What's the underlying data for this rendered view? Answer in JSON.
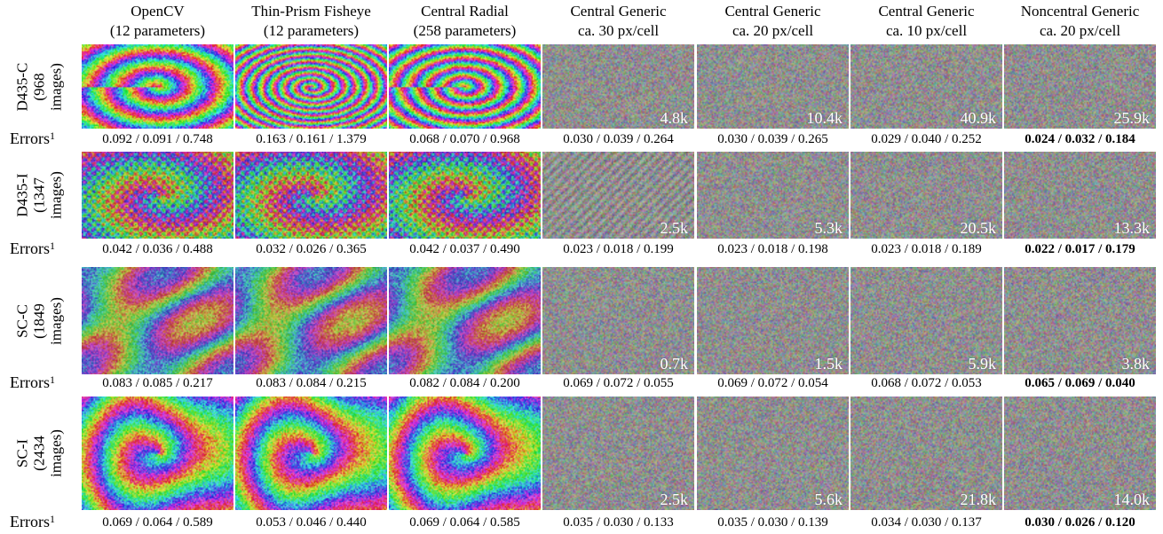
{
  "columns": [
    {
      "title": "OpenCV",
      "subtitle": "(12 parameters)"
    },
    {
      "title": "Thin-Prism Fisheye",
      "subtitle": "(12 parameters)"
    },
    {
      "title": "Central Radial",
      "subtitle": "(258 parameters)"
    },
    {
      "title": "Central Generic",
      "subtitle": "ca. 30 px/cell"
    },
    {
      "title": "Central Generic",
      "subtitle": "ca. 20 px/cell"
    },
    {
      "title": "Central Generic",
      "subtitle": "ca. 10 px/cell"
    },
    {
      "title": "Noncentral Generic",
      "subtitle": "ca. 20 px/cell"
    }
  ],
  "error_label": "Errors",
  "error_label_sup": "1",
  "rows": [
    {
      "name": "D435-C",
      "images": "(968",
      "images_word": "images)",
      "counts": [
        "",
        "",
        "",
        "4.8k",
        "10.4k",
        "40.9k",
        "25.9k"
      ],
      "errors": [
        "0.092 / 0.091 / 0.748",
        "0.163 / 0.161 / 1.379",
        "0.068 / 0.070 / 0.968",
        "0.030 / 0.039 / 0.264",
        "0.030 / 0.039 / 0.265",
        "0.029 / 0.040 / 0.252",
        "0.024 / 0.032 / 0.184"
      ]
    },
    {
      "name": "D435-I",
      "images": "(1347",
      "images_word": "images)",
      "counts": [
        "",
        "",
        "",
        "2.5k",
        "5.3k",
        "20.5k",
        "13.3k"
      ],
      "errors": [
        "0.042 / 0.036 / 0.488",
        "0.032 / 0.026 / 0.365",
        "0.042 / 0.037 / 0.490",
        "0.023 / 0.018 / 0.199",
        "0.023 / 0.018 / 0.198",
        "0.023 / 0.018 / 0.189",
        "0.022 / 0.017 / 0.179"
      ]
    },
    {
      "name": "SC-C",
      "images": "(1849",
      "images_word": "images)",
      "counts": [
        "",
        "",
        "",
        "0.7k",
        "1.5k",
        "5.9k",
        "3.8k"
      ],
      "errors": [
        "0.083 / 0.085 / 0.217",
        "0.083 / 0.084 / 0.215",
        "0.082 / 0.084 / 0.200",
        "0.069 / 0.072 / 0.055",
        "0.069 / 0.072 / 0.054",
        "0.068 / 0.072 / 0.053",
        "0.065 / 0.069 / 0.040"
      ]
    },
    {
      "name": "SC-I",
      "images": "(2434",
      "images_word": "images)",
      "counts": [
        "",
        "",
        "",
        "2.5k",
        "5.6k",
        "21.8k",
        "14.0k"
      ],
      "errors": [
        "0.069 / 0.064 / 0.589",
        "0.053 / 0.046 / 0.440",
        "0.069 / 0.064 / 0.585",
        "0.035 / 0.030 / 0.133",
        "0.035 / 0.030 / 0.139",
        "0.034 / 0.030 / 0.137",
        "0.030 / 0.026 / 0.120"
      ]
    }
  ]
}
